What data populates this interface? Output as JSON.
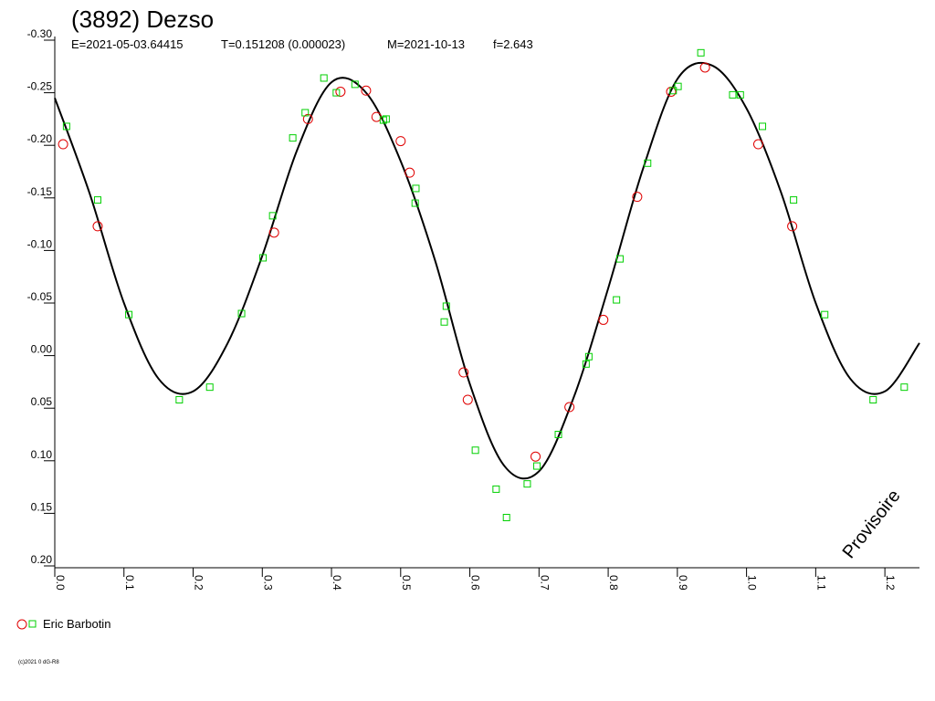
{
  "chart_data": {
    "type": "scatter",
    "title": "(3892) Dezso",
    "info": [
      "E=2021-05-03.64415",
      "T=0.151208 (0.000023)",
      "M=2021-10-13",
      "f=2.643"
    ],
    "watermark": "Provisoire",
    "footer": "(c)2021 0 dG-R8",
    "legend_label": "Eric Barbotin",
    "xlim": [
      0,
      1.25
    ],
    "ylim": [
      -0.3,
      0.2
    ],
    "y_inverted": true,
    "xticks": [
      {
        "value": 0,
        "label": "0.0"
      },
      0.1,
      0.2,
      0.3,
      0.4,
      0.5,
      0.6,
      0.7,
      0.8,
      0.9,
      {
        "value": 1,
        "label": "1.0"
      },
      1.1,
      1.2
    ],
    "yticks": [
      {
        "value": -0.3,
        "label": "-0.30"
      },
      -0.25,
      {
        "value": -0.2,
        "label": "-0.20"
      },
      -0.15,
      {
        "value": -0.1,
        "label": "-0.10"
      },
      -0.05,
      {
        "value": 0,
        "label": "0.00"
      },
      0.05,
      {
        "value": 0.1,
        "label": "0.10"
      },
      0.15,
      {
        "value": 0.2,
        "label": "0.20"
      }
    ],
    "fit": {
      "color": "#000000",
      "x": [
        0,
        0.05,
        0.1,
        0.15,
        0.2,
        0.25,
        0.3,
        0.35,
        0.4,
        0.45,
        0.5,
        0.55,
        0.6,
        0.65,
        0.7,
        0.75,
        0.8,
        0.85,
        0.9,
        0.95,
        1.0,
        1.05,
        1.1,
        1.15,
        1.2,
        1.25
      ],
      "values": [
        -0.245,
        -0.155,
        -0.05,
        0.022,
        0.034,
        -0.012,
        -0.095,
        -0.195,
        -0.26,
        -0.25,
        -0.185,
        -0.09,
        0.027,
        0.105,
        0.11,
        0.04,
        -0.064,
        -0.177,
        -0.263,
        -0.276,
        -0.235,
        -0.155,
        -0.05,
        0.022,
        0.034,
        -0.012
      ]
    },
    "points": [
      {
        "marker": "circle",
        "color": "#e00000",
        "x": [
          0.012,
          0.062,
          0.317,
          0.366,
          0.413,
          0.45,
          0.465,
          0.5,
          0.513,
          0.591,
          0.597,
          0.695,
          0.744,
          0.793,
          0.842,
          0.891,
          0.94,
          1.017,
          1.066
        ],
        "values": [
          -0.201,
          -0.123,
          -0.117,
          -0.225,
          -0.251,
          -0.252,
          -0.227,
          -0.204,
          -0.174,
          0.016,
          0.042,
          0.096,
          0.049,
          -0.034,
          -0.151,
          -0.251,
          -0.274,
          -0.201,
          -0.123
        ]
      },
      {
        "marker": "square",
        "color": "#00d000",
        "x": [
          0.017,
          0.062,
          0.107,
          0.18,
          0.224,
          0.27,
          0.301,
          0.315,
          0.344,
          0.362,
          0.389,
          0.407,
          0.434,
          0.475,
          0.479,
          0.522,
          0.521,
          0.566,
          0.563,
          0.608,
          0.638,
          0.653,
          0.683,
          0.697,
          0.728,
          0.768,
          0.772,
          0.812,
          0.817,
          0.857,
          0.894,
          0.901,
          0.934,
          0.98,
          0.991,
          1.023,
          1.068,
          1.113,
          1.183,
          1.228
        ],
        "values": [
          -0.218,
          -0.148,
          -0.039,
          0.042,
          0.03,
          -0.04,
          -0.093,
          -0.133,
          -0.207,
          -0.231,
          -0.264,
          -0.25,
          -0.258,
          -0.224,
          -0.225,
          -0.159,
          -0.145,
          -0.047,
          -0.032,
          0.09,
          0.127,
          0.154,
          0.122,
          0.105,
          0.075,
          0.008,
          0.001,
          -0.053,
          -0.092,
          -0.183,
          -0.252,
          -0.256,
          -0.288,
          -0.248,
          -0.248,
          -0.218,
          -0.148,
          -0.039,
          0.042,
          0.03
        ]
      }
    ]
  }
}
